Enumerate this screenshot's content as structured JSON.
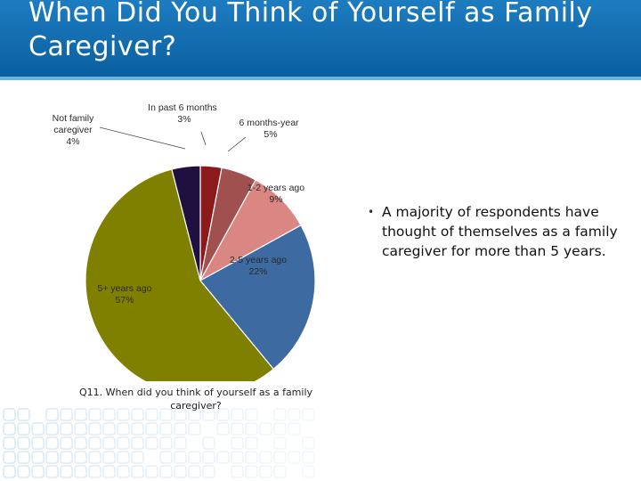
{
  "slide": {
    "title": "When Did You Think of Yourself as Family Caregiver?",
    "caption": "Q11. When did you think of yourself as a family caregiver?",
    "bullets": [
      "A majority of respondents have thought of themselves as a family caregiver for more than 5 years."
    ]
  },
  "colors": {
    "header": "#0a5f9f",
    "header_accent": "#6fb0de"
  },
  "chart_data": {
    "type": "pie",
    "title": "",
    "slices": [
      {
        "label": "In past 6 months",
        "value": 3,
        "display": "3%",
        "color": "#8b1a1a"
      },
      {
        "label": "6 months-year",
        "value": 5,
        "display": "5%",
        "color": "#a0504e"
      },
      {
        "label": "1-2 years ago",
        "value": 9,
        "display": "9%",
        "color": "#da8683"
      },
      {
        "label": "2-5 years ago",
        "value": 22,
        "display": "22%",
        "color": "#3d6aa0"
      },
      {
        "label": "5+ years ago",
        "value": 57,
        "display": "57%",
        "color": "#808000"
      },
      {
        "label": "Not family caregiver",
        "value": 4,
        "display": "4%",
        "color": "#20103f"
      }
    ],
    "start_angle_deg": 0,
    "direction": "clockwise"
  }
}
